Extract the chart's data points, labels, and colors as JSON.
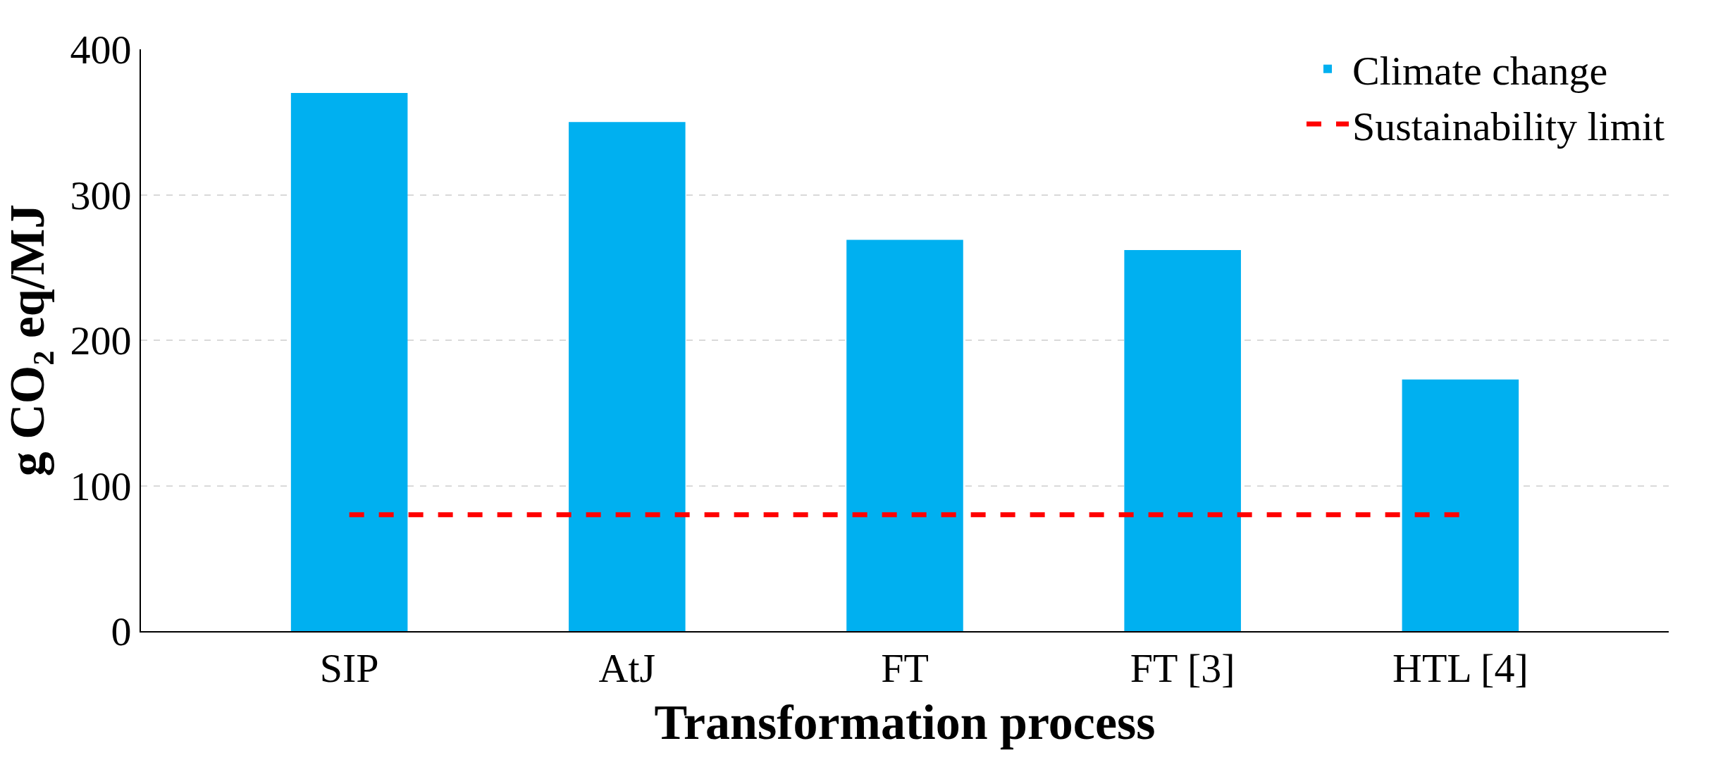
{
  "chart_data": {
    "type": "bar",
    "xlabel": "Transformation process",
    "ylabel": "g CO₂ eq/MJ",
    "categories": [
      "SIP",
      "AtJ",
      "FT",
      "FT [3]",
      "HTL [4]"
    ],
    "series": [
      {
        "name": "Climate change",
        "color": "#00b0f0",
        "values": [
          370,
          350,
          269,
          262,
          173
        ]
      },
      {
        "name": "Sustainability limit",
        "type": "line",
        "color": "#ff0000",
        "line_style": "dashed",
        "marker": "none",
        "values": [
          80,
          80,
          80,
          80,
          80
        ]
      }
    ],
    "ylim": [
      0,
      400
    ],
    "yticks": [
      0,
      100,
      200,
      300,
      400
    ],
    "grid": "y",
    "legend": "top right"
  }
}
